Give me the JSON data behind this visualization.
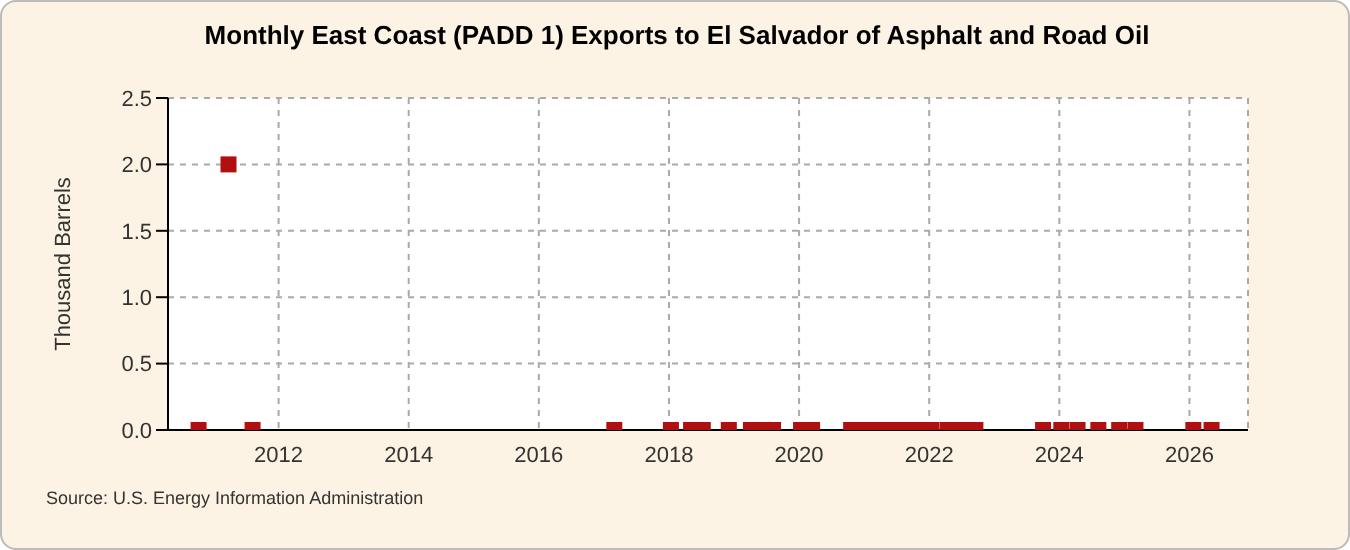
{
  "chart_data": {
    "type": "scatter",
    "title": "Monthly East Coast (PADD 1) Exports to El Salvador of Asphalt and Road Oil",
    "ylabel": "Thousand Barrels",
    "annotations": [
      "Source: U.S. Energy Information Administration"
    ],
    "x": [
      2010.77,
      2011.23,
      2011.6,
      2017.16,
      2018.03,
      2018.34,
      2018.52,
      2018.92,
      2019.26,
      2019.42,
      2019.6,
      2020.03,
      2020.2,
      2020.8,
      2020.95,
      2021.1,
      2021.3,
      2021.45,
      2021.64,
      2021.8,
      2022.03,
      2022.28,
      2022.42,
      2022.57,
      2022.71,
      2023.75,
      2024.03,
      2024.28,
      2024.6,
      2024.92,
      2025.17,
      2026.06,
      2026.34
    ],
    "series": [
      {
        "color": "#b01010",
        "values": [
          0,
          2,
          0,
          0,
          0,
          0,
          0,
          0,
          0,
          0,
          0,
          0,
          0,
          0,
          0,
          0,
          0,
          0,
          0,
          0,
          0,
          0,
          0,
          0,
          0,
          0,
          0,
          0,
          0,
          0,
          0,
          0,
          0
        ]
      }
    ],
    "xlim": [
      2010.3,
      2026.9
    ],
    "xticks": [
      2012,
      2014,
      2016,
      2018,
      2020,
      2022,
      2024,
      2026
    ],
    "ylim": [
      0,
      2.5
    ],
    "yticks": [
      {
        "value": 0,
        "label": "0.0"
      },
      {
        "value": 0.5,
        "label": "0.5"
      },
      {
        "value": 1,
        "label": "1.0"
      },
      {
        "value": 1.5,
        "label": "1.5"
      },
      {
        "value": 2,
        "label": "2.0"
      },
      {
        "value": 2.5,
        "label": "2.5"
      }
    ],
    "grid": true,
    "marker": "square"
  }
}
